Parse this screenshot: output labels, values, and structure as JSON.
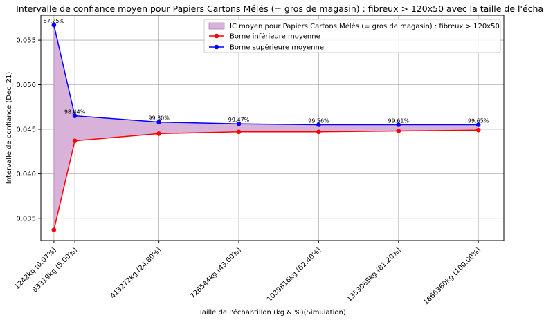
{
  "chart_data": {
    "type": "line",
    "title": "Intervalle de confiance moyen pour Papiers Cartons Mélés (= gros de magasin) : fibreux > 120x50 avec la taille de l'échantillon",
    "xlabel": "Taille de l'échantillon (kg & %)(Simulation)",
    "ylabel": "Intervalle de confiance (Dec_21)",
    "x": [
      1242,
      83319,
      413272,
      726544,
      1039816,
      1353088,
      1666360
    ],
    "categories": [
      "1242kg (0.07%)",
      "83319kg (5.00%)",
      "413272kg (24.80%)",
      "726544kg (43.60%)",
      "1039816kg (62.40%)",
      "1353088kg (81.20%)",
      "1666360kg (100.00%)"
    ],
    "ylim": [
      0.0325,
      0.0578
    ],
    "yticks": [
      "0.035",
      "0.040",
      "0.045",
      "0.050",
      "0.055"
    ],
    "ytick_values": [
      0.035,
      0.04,
      0.045,
      0.05,
      0.055
    ],
    "series": [
      {
        "name": "Borne inférieure moyenne",
        "color": "#ff0000",
        "values": [
          0.0337,
          0.0437,
          0.0445,
          0.0447,
          0.0447,
          0.0448,
          0.0449
        ]
      },
      {
        "name": "Borne supérieure moyenne",
        "color": "#0000ff",
        "values": [
          0.0567,
          0.0465,
          0.0458,
          0.0456,
          0.0455,
          0.0455,
          0.0455
        ]
      }
    ],
    "fill": {
      "name": "IC moyen pour Papiers Cartons Mélés (= gros de magasin) : fibreux > 120x50",
      "color": "#d8b2d8",
      "edge": "#b080b8"
    },
    "annotations": [
      "87.25%",
      "98.44%",
      "99.30%",
      "99.47%",
      "99.56%",
      "99.61%",
      "99.65%"
    ],
    "grid": true,
    "legend_position": "top-right"
  }
}
